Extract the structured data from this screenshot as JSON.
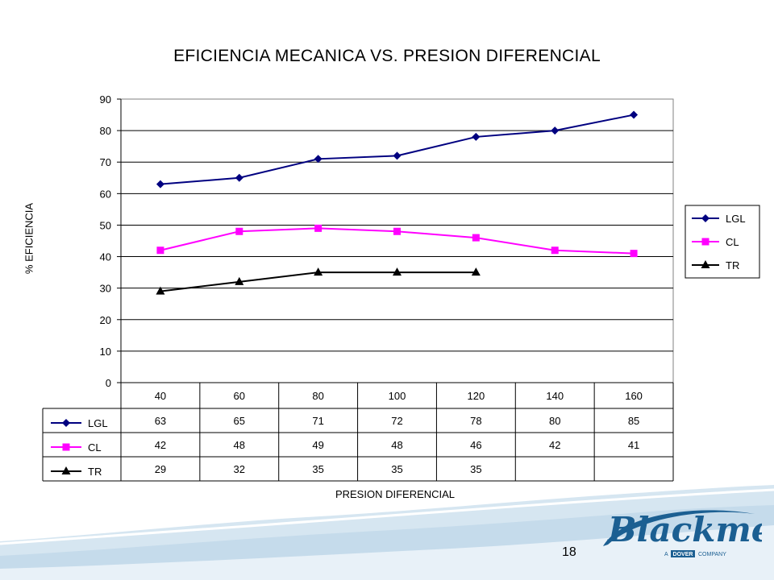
{
  "slide": {
    "page_number": "18",
    "logo_text": "Blackmer",
    "logo_tagline_a": "A",
    "logo_tagline_dover": "DOVER",
    "logo_tagline_company": "COMPANY"
  },
  "chart_data": {
    "type": "line",
    "title": "EFICIENCIA MECANICA VS. PRESION DIFERENCIAL",
    "xlabel": "PRESION DIFERENCIAL",
    "ylabel": "% EFICIENCIA",
    "categories": [
      "40",
      "60",
      "80",
      "100",
      "120",
      "140",
      "160"
    ],
    "ylim": [
      0,
      90
    ],
    "yticks": [
      0,
      10,
      20,
      30,
      40,
      50,
      60,
      70,
      80,
      90
    ],
    "grid": true,
    "legend_position": "right",
    "data_table": true,
    "series": [
      {
        "name": "LGL",
        "values": [
          63,
          65,
          71,
          72,
          78,
          80,
          85
        ],
        "color": "#000080",
        "marker": "diamond"
      },
      {
        "name": "CL",
        "values": [
          42,
          48,
          49,
          48,
          46,
          42,
          41
        ],
        "color": "#ff00ff",
        "marker": "square"
      },
      {
        "name": "TR",
        "values": [
          29,
          32,
          35,
          35,
          35,
          null,
          null
        ],
        "color": "#000000",
        "marker": "triangle"
      }
    ]
  }
}
